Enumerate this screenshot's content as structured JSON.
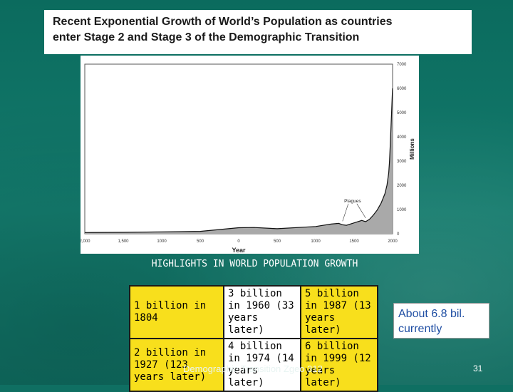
{
  "slide": {
    "title_line1": "Recent Exponential Growth of World’s Population as countries",
    "title_line2": "enter Stage 2 and Stage 3 of the Demographic Transition",
    "highlights_title": "HIGHLIGHTS IN WORLD POPULATION GROWTH",
    "footer": "Demographic Transition Zgeo 312",
    "about_note": "About 6.8 bil. currently",
    "page_number": "31"
  },
  "highlights_table": [
    [
      "1 billion in 1804",
      "3 billion in 1960 (33 years later)",
      "5 billion in 1987 (13 years later)"
    ],
    [
      "2 billion in 1927 (123 years later)",
      "4 billion in 1974 (14 years later)",
      "6 billion in 1999 (12 years later)"
    ]
  ],
  "chart_data": {
    "type": "area",
    "xlabel": "Year",
    "ylabel": "Millions",
    "x_ticks": [
      "2,000",
      "1,500",
      "1000",
      "500",
      "0",
      "500",
      "1000",
      "1500",
      "2000"
    ],
    "y_ticks": [
      "0",
      "1000",
      "2000",
      "3000",
      "4000",
      "5000",
      "6000",
      "7000"
    ],
    "xlim": [
      -2000,
      2000
    ],
    "ylim": [
      0,
      7000
    ],
    "annotations": [
      "Plagues"
    ],
    "x": [
      -2000,
      -1500,
      -1000,
      -500,
      0,
      200,
      500,
      1000,
      1200,
      1300,
      1350,
      1400,
      1500,
      1600,
      1650,
      1700,
      1750,
      1800,
      1850,
      1900,
      1927,
      1950,
      1960,
      1974,
      1987,
      1999
    ],
    "y": [
      50,
      60,
      80,
      100,
      250,
      260,
      210,
      300,
      400,
      430,
      370,
      350,
      450,
      550,
      500,
      600,
      770,
      980,
      1260,
      1650,
      2000,
      2520,
      3000,
      4000,
      5000,
      6000
    ],
    "colors": {
      "area": "#a9a9a9",
      "line": "#111111"
    }
  }
}
